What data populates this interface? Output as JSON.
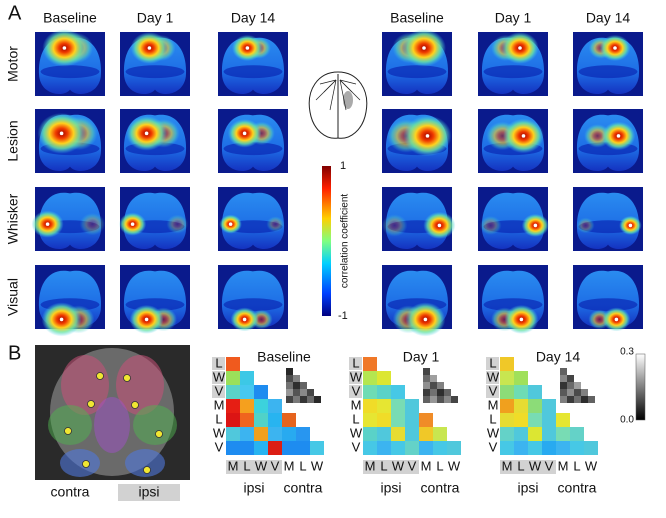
{
  "panel_a": {
    "label": "A",
    "left_columns": [
      "Baseline",
      "Day 1",
      "Day 14"
    ],
    "right_columns": [
      "Baseline",
      "Day 1",
      "Day 14"
    ],
    "rows": [
      "Motor",
      "Lesion",
      "Whisker",
      "Visual"
    ],
    "colorbar": {
      "title": "correlation coefficient",
      "max": "1",
      "min": "-1"
    }
  },
  "panel_b": {
    "label": "B",
    "image_labels": {
      "contra": "contra",
      "ipsi": "ipsi"
    },
    "row_labels": [
      "L",
      "W",
      "V",
      "M",
      "L",
      "W",
      "V"
    ],
    "column_labels": [
      "M",
      "L",
      "W",
      "V",
      "M",
      "L",
      "W"
    ],
    "group_labels": [
      "ipsi",
      "contra"
    ],
    "scale": {
      "max": "0.3",
      "min": "0.0"
    },
    "matrices": [
      {
        "title": "Baseline",
        "colors": [
          [
            "#f05a1e"
          ],
          [
            "#9be05a",
            "#3cc8e6"
          ],
          [
            "#5ad2c8",
            "#46c8f0",
            "#1e8cf0"
          ],
          [
            "#e61e14",
            "#f5a01e",
            "#3cd2dc",
            "#3cb4f0"
          ],
          [
            "#dc1414",
            "#f0641e",
            "#50d2c8",
            "#28b4f0",
            "#e6641e"
          ],
          [
            "#50c8dc",
            "#3cb4f0",
            "#f0a01e",
            "#3cb4f0",
            "#28aaf0",
            "#2896f0"
          ],
          [
            "#1e8cf0",
            "#1e8cf0",
            "#28b4f0",
            "#dc1e14",
            "#1e8cf0",
            "#1e8cf0",
            "#46c8e6"
          ]
        ]
      },
      {
        "title": "Day 1",
        "colors": [
          [
            "#f07828"
          ],
          [
            "#b4e650",
            "#dce632"
          ],
          [
            "#6edcb4",
            "#5ad2c8",
            "#46c8e6"
          ],
          [
            "#f0dc28",
            "#e6e632",
            "#78dcb4",
            "#50c8dc"
          ],
          [
            "#e6e632",
            "#f0dc28",
            "#78dcb4",
            "#50c8dc",
            "#f08c28"
          ],
          [
            "#5ad2c8",
            "#50c8dc",
            "#e6dc32",
            "#50c8dc",
            "#f0c828",
            "#c8e650"
          ],
          [
            "#46c8e6",
            "#3cb4f0",
            "#46c8e6",
            "#64d2c8",
            "#3cb4f0",
            "#46c8e6",
            "#50c8dc"
          ]
        ]
      },
      {
        "title": "Day 14",
        "colors": [
          [
            "#f0c828"
          ],
          [
            "#c8e650",
            "#a0e05a"
          ],
          [
            "#8cdc78",
            "#6edcb4",
            "#50c8dc"
          ],
          [
            "#f0a01e",
            "#e6dc32",
            "#8cdc78",
            "#50c8dc"
          ],
          [
            "#e6dc32",
            "#f0dc28",
            "#78dcb4",
            "#50c8dc",
            "#e6e632"
          ],
          [
            "#64d2c8",
            "#50c8dc",
            "#dce632",
            "#50c8dc",
            "#78dcb4",
            "#64d2c8"
          ],
          [
            "#46c8e6",
            "#3cb4f0",
            "#46c8e6",
            "#28aaf0",
            "#3cb4f0",
            "#46c8e6",
            "#50c8dc"
          ]
        ]
      }
    ]
  }
}
